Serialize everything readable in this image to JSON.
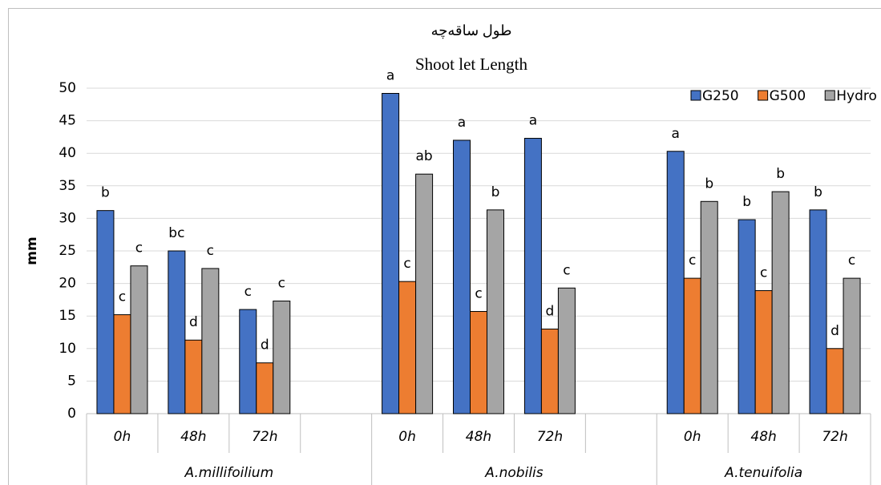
{
  "chart_data": {
    "type": "bar",
    "title": "طول ساقه‌چه",
    "subtitle": "Shoot let Length",
    "y_label": "mm",
    "groups": [
      {
        "label": "A.millifoilium",
        "categories": [
          "0h",
          "48h",
          "72h",
          null
        ]
      },
      {
        "label": "A.nobilis",
        "categories": [
          "0h",
          "48h",
          "72h",
          null
        ]
      },
      {
        "label": "A.tenuifolia",
        "categories": [
          "0h",
          "48h",
          "72h"
        ]
      }
    ],
    "series": [
      {
        "name": "G250",
        "color": "#4472c4",
        "values": [
          31.2,
          25.0,
          16.0,
          null,
          49.2,
          42.0,
          42.3,
          null,
          40.3,
          29.8,
          31.3
        ],
        "letters": [
          "b",
          "bc",
          "c",
          null,
          "a",
          "a",
          "a",
          null,
          "a",
          "b",
          "b"
        ]
      },
      {
        "name": "G500",
        "color": "#ed7d31",
        "values": [
          15.2,
          11.3,
          7.8,
          null,
          20.3,
          15.7,
          13.0,
          null,
          20.8,
          18.9,
          10.0
        ],
        "letters": [
          "c",
          "d",
          "d",
          null,
          "c",
          "c",
          "d",
          null,
          "c",
          "c",
          "d"
        ]
      },
      {
        "name": "Hydro",
        "color": "#a5a5a5",
        "values": [
          22.7,
          22.3,
          17.3,
          null,
          36.8,
          31.3,
          19.3,
          null,
          32.6,
          34.1,
          20.8
        ],
        "letters": [
          "c",
          "c",
          "c",
          null,
          "ab",
          "b",
          "c",
          null,
          "b",
          "b",
          "c"
        ]
      }
    ],
    "ylim": [
      0,
      50
    ],
    "yticks": [
      0,
      5,
      10,
      15,
      20,
      25,
      30,
      35,
      40,
      45,
      50
    ],
    "grid": true,
    "legend": "top-right"
  }
}
